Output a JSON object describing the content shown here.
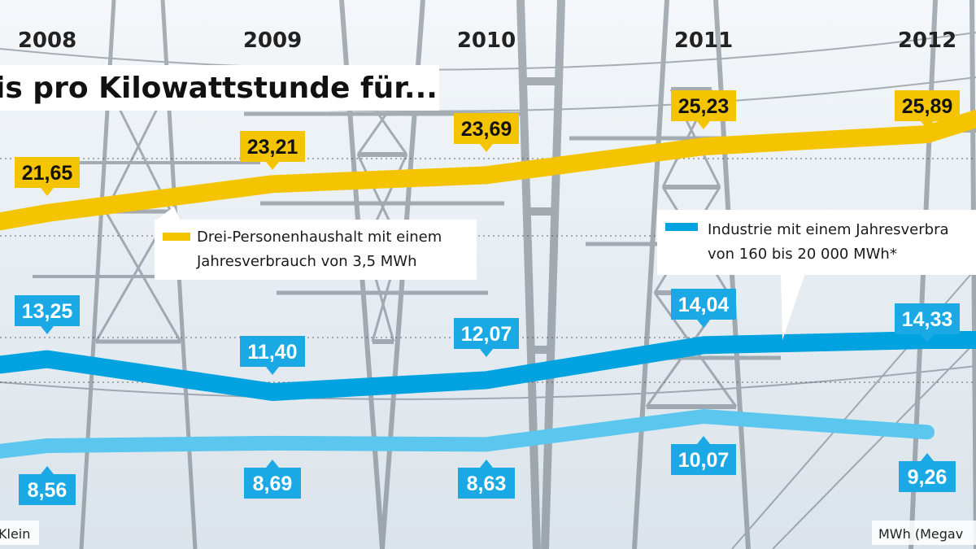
{
  "header": {
    "title": "is pro Kilowattstunde für..."
  },
  "footer": {
    "left": "Klein",
    "right": "MWh (Megav"
  },
  "legend": {
    "household": [
      "Drei-Personenhaushalt mit einem",
      "Jahresverbrauch von 3,5 MWh"
    ],
    "industry": [
      "Industrie mit einem Jahresverbra",
      "von 160 bis 20 000 MWh*"
    ]
  },
  "colors": {
    "household": "#f5c400",
    "industry_dark": "#00a2e0",
    "industry_light": "#5bc6ee",
    "label_bg_yellow": "#f5c400",
    "label_bg_blue": "#1aa9e4"
  },
  "chart_data": {
    "type": "line",
    "title": "is pro Kilowattstunde für...",
    "x": [
      "2008",
      "2009",
      "2010",
      "2011",
      "2012"
    ],
    "series": [
      {
        "name": "Drei-Personenhaushalt mit einem Jahresverbrauch von 3,5 MWh",
        "values": [
          21.65,
          23.21,
          23.69,
          25.23,
          25.89
        ],
        "labels": [
          "21,65",
          "23,21",
          "23,69",
          "25,23",
          "25,89"
        ]
      },
      {
        "name": "Industrie mit einem Jahresverbra von 160 bis 20 000 MWh*",
        "values": [
          13.25,
          11.4,
          12.07,
          14.04,
          14.33
        ],
        "labels": [
          "13,25",
          "11,40",
          "12,07",
          "14,04",
          "14,33"
        ]
      },
      {
        "name": "",
        "values": [
          8.56,
          8.69,
          8.63,
          10.07,
          9.26
        ],
        "labels": [
          "8,56",
          "8,69",
          "8,63",
          "10,07",
          "9,26"
        ]
      }
    ],
    "grid": true,
    "legend_position": "middle"
  }
}
